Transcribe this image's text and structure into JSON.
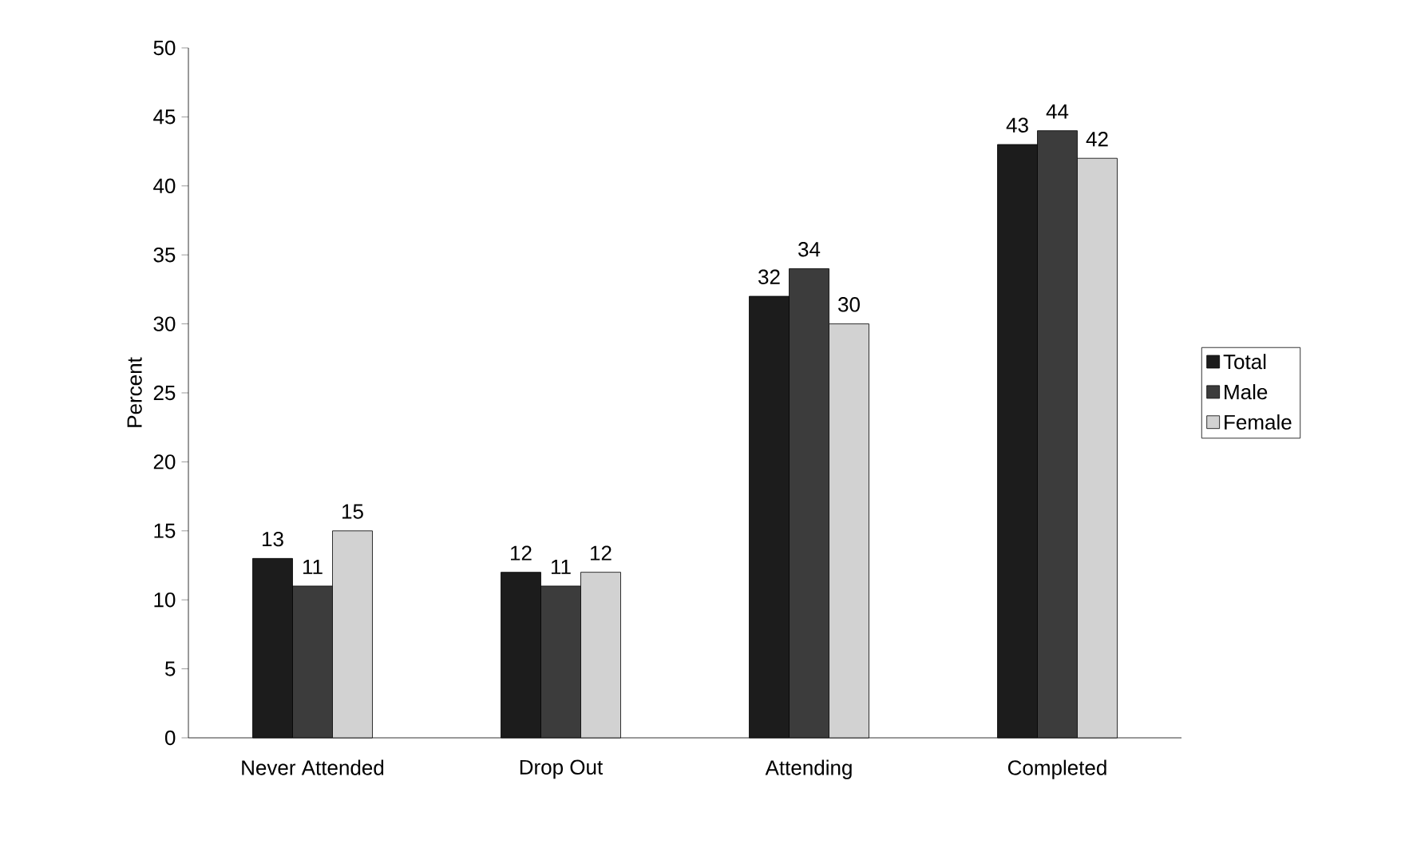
{
  "chart_data": {
    "type": "bar",
    "ylabel": "Percent",
    "categories": [
      "Never Attended",
      "Drop Out",
      "Attending",
      "Completed"
    ],
    "series": [
      {
        "name": "Total",
        "color": "#1c1c1c",
        "values": [
          13,
          12,
          32,
          43
        ]
      },
      {
        "name": "Male",
        "color": "#3c3c3c",
        "values": [
          11,
          11,
          34,
          44
        ]
      },
      {
        "name": "Female",
        "color": "#d2d2d2",
        "values": [
          15,
          12,
          30,
          42
        ]
      }
    ],
    "ylim": [
      0,
      50
    ],
    "yticks": [
      0,
      5,
      10,
      15,
      20,
      25,
      30,
      35,
      40,
      45,
      50
    ],
    "data_labels": true,
    "legend": "right",
    "grid": false
  }
}
